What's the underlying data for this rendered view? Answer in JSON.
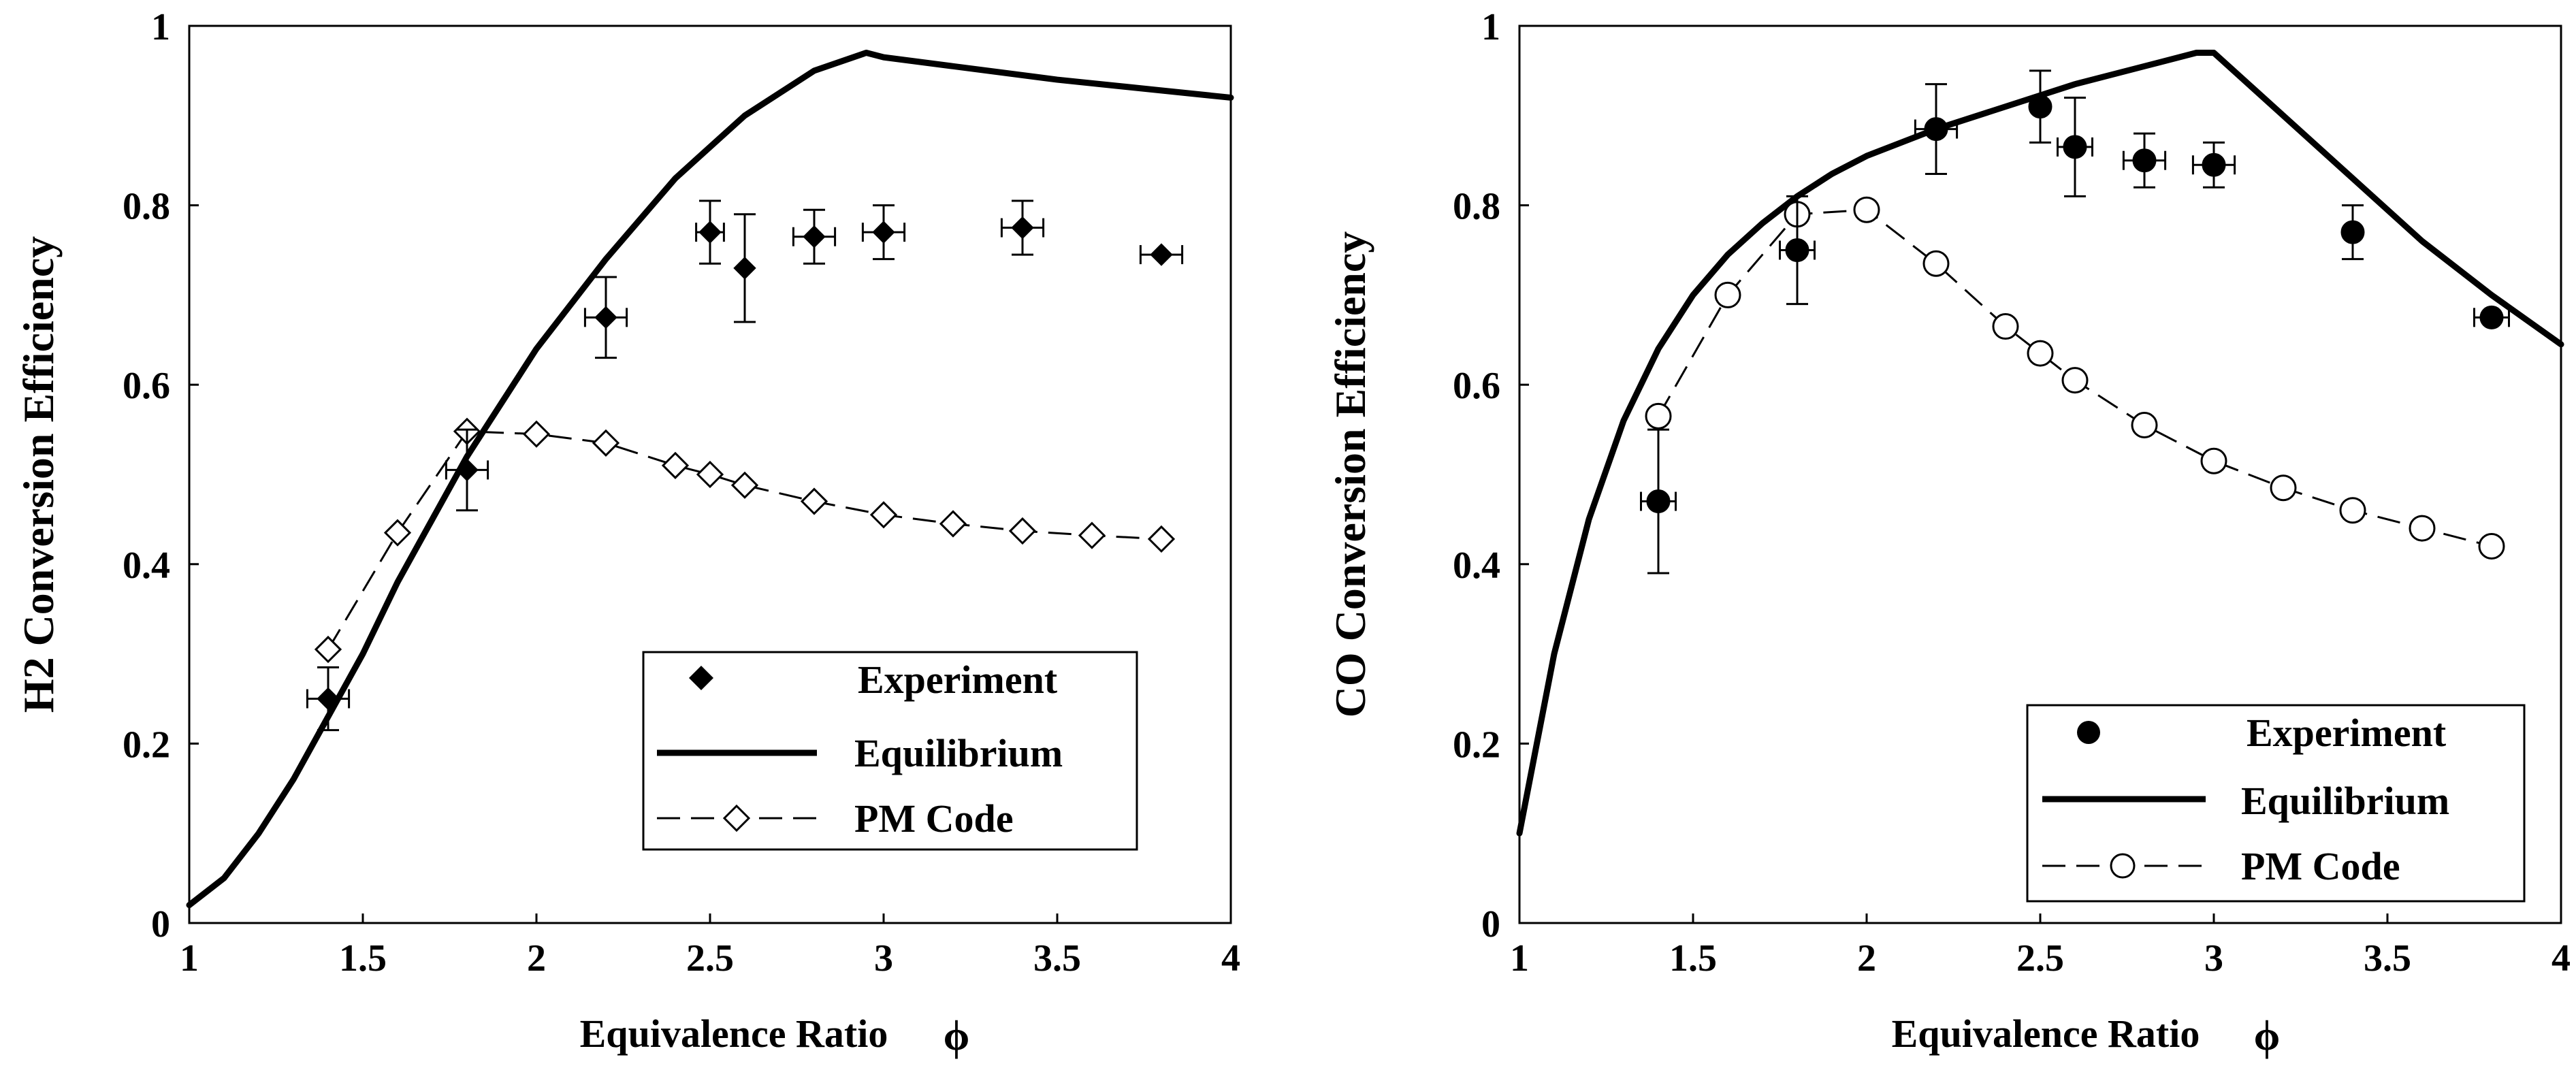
{
  "chart_data": [
    {
      "type": "line",
      "title": "",
      "xlabel": "Equivalence Ratio",
      "xlabel_symbol": "ϕ",
      "ylabel": "H2 Conversion Efficiency",
      "xlim": [
        1,
        4
      ],
      "ylim": [
        0,
        1
      ],
      "x_ticks": [
        "1",
        "1.5",
        "2",
        "2.5",
        "3",
        "3.5",
        "4"
      ],
      "y_ticks": [
        "0",
        "0.2",
        "0.4",
        "0.6",
        "0.8",
        "1"
      ],
      "legend_position": "bottom-right",
      "legend": {
        "experiment": "Experiment",
        "equilibrium": "Equilibrium",
        "pm_code": "PM Code"
      },
      "series": [
        {
          "name": "Equilibrium",
          "style": "solid",
          "x": [
            1.0,
            1.1,
            1.2,
            1.3,
            1.4,
            1.5,
            1.6,
            1.7,
            1.8,
            1.9,
            2.0,
            2.2,
            2.4,
            2.6,
            2.8,
            2.95,
            3.0,
            3.2,
            3.5,
            4.0
          ],
          "y": [
            0.02,
            0.05,
            0.1,
            0.16,
            0.23,
            0.3,
            0.38,
            0.45,
            0.52,
            0.58,
            0.64,
            0.74,
            0.83,
            0.9,
            0.95,
            0.97,
            0.965,
            0.955,
            0.94,
            0.92
          ]
        },
        {
          "name": "PM Code",
          "style": "dashed",
          "marker": "open-diamond",
          "x": [
            1.4,
            1.6,
            1.8,
            2.0,
            2.2,
            2.4,
            2.5,
            2.6,
            2.8,
            3.0,
            3.2,
            3.4,
            3.6,
            3.8
          ],
          "y": [
            0.305,
            0.435,
            0.548,
            0.545,
            0.535,
            0.51,
            0.5,
            0.488,
            0.47,
            0.455,
            0.445,
            0.437,
            0.432,
            0.428
          ]
        },
        {
          "name": "Experiment",
          "style": "markers",
          "marker": "filled-diamond",
          "x": [
            1.4,
            1.8,
            2.2,
            2.5,
            2.6,
            2.8,
            3.0,
            3.4,
            3.8
          ],
          "y": [
            0.25,
            0.505,
            0.675,
            0.77,
            0.73,
            0.765,
            0.77,
            0.775,
            0.745
          ],
          "y_err": [
            0.035,
            0.045,
            0.045,
            0.035,
            0.06,
            0.03,
            0.03,
            0.03,
            0.0
          ],
          "x_err": [
            0.06,
            0.06,
            0.06,
            0.04,
            0.0,
            0.06,
            0.06,
            0.06,
            0.06
          ]
        }
      ]
    },
    {
      "type": "line",
      "title": "",
      "xlabel": "Equivalence Ratio",
      "xlabel_symbol": "ϕ",
      "ylabel": "CO Conversion Efficiency",
      "xlim": [
        1,
        4
      ],
      "ylim": [
        0,
        1
      ],
      "x_ticks": [
        "1",
        "1.5",
        "2",
        "2.5",
        "3",
        "3.5",
        "4"
      ],
      "y_ticks": [
        "0",
        "0.2",
        "0.4",
        "0.6",
        "0.8",
        "1"
      ],
      "legend_position": "bottom-right",
      "legend": {
        "experiment": "Experiment",
        "equilibrium": "Equilibrium",
        "pm_code": "PM Code"
      },
      "series": [
        {
          "name": "Equilibrium",
          "style": "solid",
          "x": [
            1.0,
            1.1,
            1.2,
            1.3,
            1.4,
            1.5,
            1.6,
            1.7,
            1.8,
            1.9,
            2.0,
            2.2,
            2.4,
            2.6,
            2.8,
            2.95,
            3.0,
            3.2,
            3.4,
            3.6,
            3.8,
            4.0
          ],
          "y": [
            0.1,
            0.3,
            0.45,
            0.56,
            0.64,
            0.7,
            0.745,
            0.78,
            0.81,
            0.835,
            0.855,
            0.885,
            0.91,
            0.935,
            0.955,
            0.97,
            0.97,
            0.9,
            0.83,
            0.76,
            0.7,
            0.645
          ]
        },
        {
          "name": "PM Code",
          "style": "dashed",
          "marker": "open-circle",
          "x": [
            1.4,
            1.6,
            1.8,
            2.0,
            2.2,
            2.4,
            2.5,
            2.6,
            2.8,
            3.0,
            3.2,
            3.4,
            3.6,
            3.8
          ],
          "y": [
            0.565,
            0.7,
            0.79,
            0.795,
            0.735,
            0.665,
            0.635,
            0.605,
            0.555,
            0.515,
            0.485,
            0.46,
            0.44,
            0.42
          ]
        },
        {
          "name": "Experiment",
          "style": "markers",
          "marker": "filled-circle",
          "x": [
            1.4,
            1.8,
            2.2,
            2.5,
            2.6,
            2.8,
            3.0,
            3.4,
            3.8
          ],
          "y": [
            0.47,
            0.75,
            0.885,
            0.91,
            0.865,
            0.85,
            0.845,
            0.77,
            0.675
          ],
          "y_err": [
            0.08,
            0.06,
            0.05,
            0.04,
            0.055,
            0.03,
            0.025,
            0.03,
            0.0
          ],
          "x_err": [
            0.05,
            0.05,
            0.06,
            0.0,
            0.05,
            0.06,
            0.06,
            0.0,
            0.05
          ]
        }
      ]
    }
  ]
}
